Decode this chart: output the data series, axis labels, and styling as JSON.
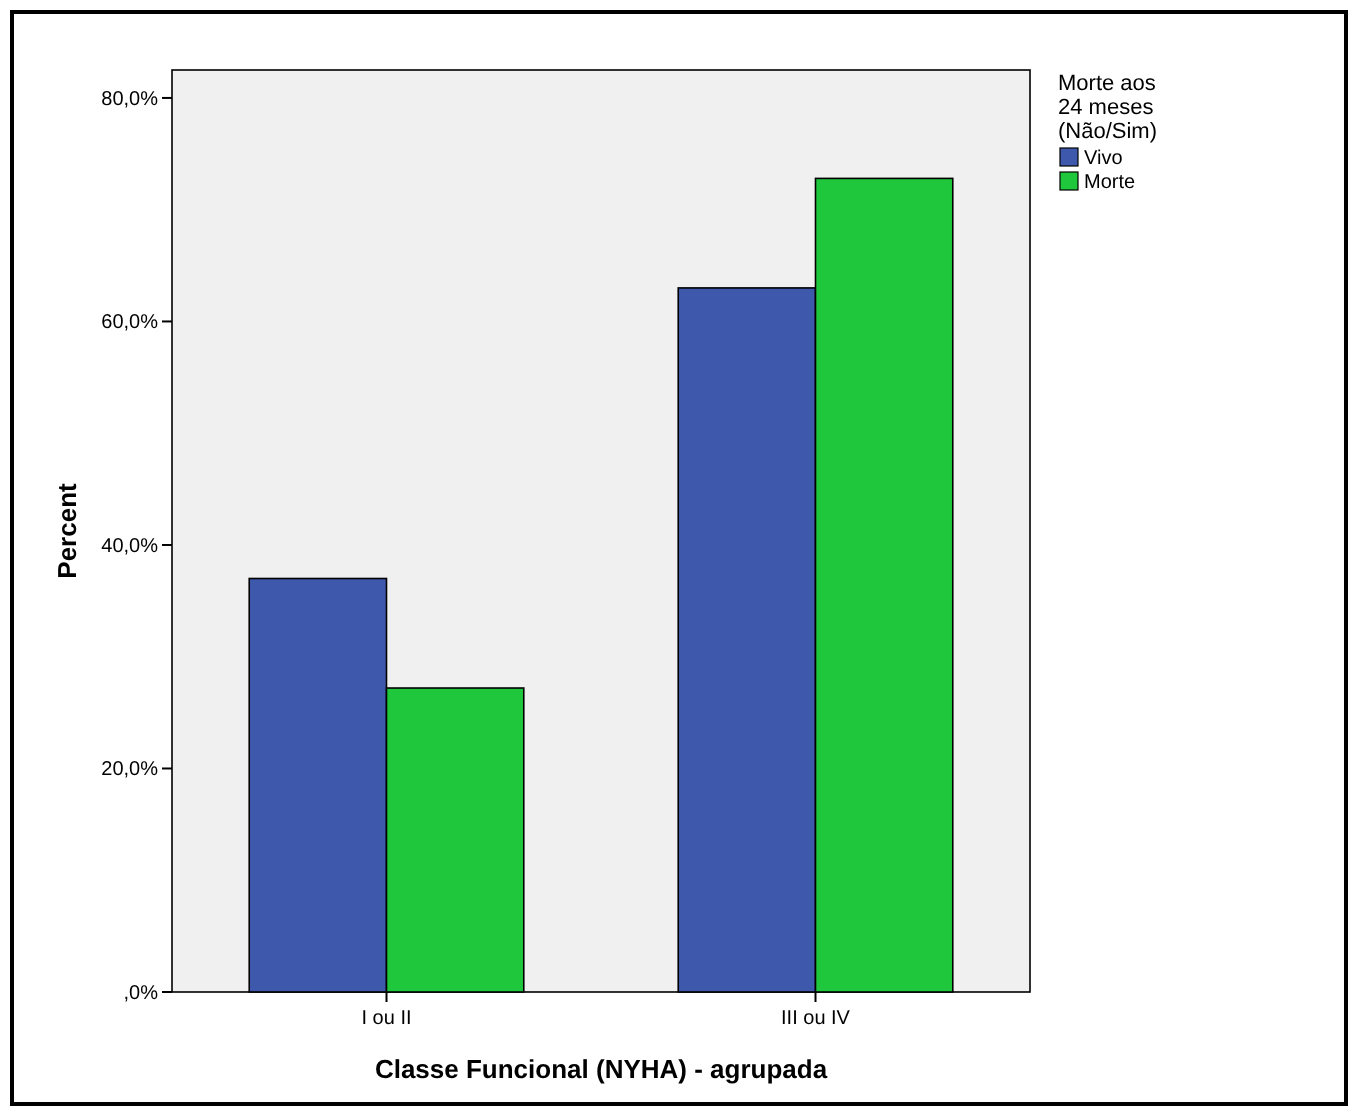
{
  "chart_data": {
    "type": "bar",
    "xlabel": "Classe Funcional (NYHA) - agrupada",
    "ylabel": "Percent",
    "legend_title": "Morte aos 24 meses (Não/Sim)",
    "legend": "top right",
    "categories": [
      "I ou II",
      "III ou IV"
    ],
    "series": [
      {
        "name": "Vivo",
        "color": "#3e58ac",
        "values": [
          37.0,
          63.0
        ]
      },
      {
        "name": "Morte",
        "color": "#1fc73d",
        "values": [
          27.2,
          72.8
        ]
      }
    ],
    "ylim": [
      0,
      82.5
    ],
    "yticks": [
      {
        "value": 0,
        "label": ",0%"
      },
      {
        "value": 20,
        "label": "20,0%"
      },
      {
        "value": 40,
        "label": "40,0%"
      },
      {
        "value": 60,
        "label": "60,0%"
      },
      {
        "value": 80,
        "label": "80,0%"
      }
    ],
    "grid": false
  }
}
